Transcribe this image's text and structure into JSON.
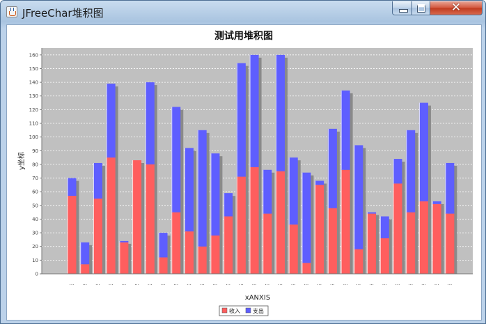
{
  "window": {
    "title": "JFreeChar堆积图",
    "minimize_icon": "minimize-icon",
    "maximize_icon": "maximize-icon",
    "close_icon": "close-icon",
    "close_glyph": "✕"
  },
  "chart_data": {
    "type": "bar",
    "stacked": true,
    "title": "测试用堆积图",
    "xlabel": "xANXIS",
    "ylabel": "y坐标",
    "ylim": [
      0,
      165
    ],
    "yticks": [
      0,
      10,
      20,
      30,
      40,
      50,
      60,
      70,
      80,
      90,
      100,
      110,
      120,
      130,
      140,
      150,
      160
    ],
    "grid": true,
    "legend": "bottom-center",
    "categories": [
      "...",
      "...",
      "...",
      "...",
      "...",
      "...",
      "...",
      "...",
      "...",
      "...",
      "...",
      "...",
      "...",
      "...",
      "...",
      "...",
      "...",
      "...",
      "...",
      "...",
      "...",
      "...",
      "...",
      "...",
      "...",
      "...",
      "...",
      "...",
      "...",
      "..."
    ],
    "series": [
      {
        "name": "收入",
        "color": "#ff5e5e",
        "values": [
          57,
          7,
          55,
          85,
          23,
          83,
          80,
          12,
          45,
          31,
          20,
          28,
          42,
          71,
          78,
          44,
          75,
          36,
          8,
          65,
          48,
          76,
          18,
          44,
          26,
          66,
          45,
          53,
          51,
          44
        ]
      },
      {
        "name": "支出",
        "color": "#5e5eff",
        "values": [
          13,
          16,
          26,
          54,
          1,
          0,
          60,
          18,
          77,
          61,
          85,
          60,
          17,
          83,
          82,
          32,
          85,
          49,
          66,
          3,
          58,
          58,
          76,
          1,
          16,
          18,
          60,
          72,
          2,
          37
        ]
      }
    ],
    "colors": {
      "plot_background": "#c0c0c0",
      "gridline": "#ffffff",
      "shadow": "#8a8a8a"
    }
  }
}
